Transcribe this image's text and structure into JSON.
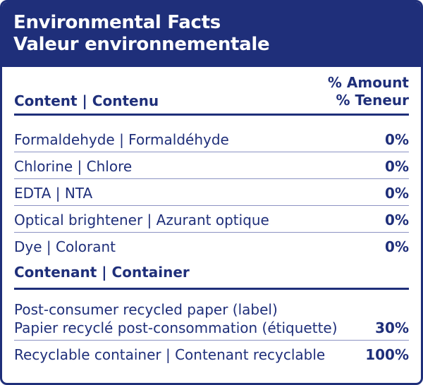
{
  "header": {
    "title_en": "Environmental Facts",
    "title_fr": "Valeur environnementale"
  },
  "content_section": {
    "label": "Content | Contenu",
    "amount_header_en": "% Amount",
    "amount_header_fr": "% Teneur",
    "rows": [
      {
        "label": "Formaldehyde | Formaldéhyde",
        "value": "0%"
      },
      {
        "label": "Chlorine | Chlore",
        "value": "0%"
      },
      {
        "label": "EDTA | NTA",
        "value": "0%"
      },
      {
        "label": "Optical brightener | Azurant optique",
        "value": "0%"
      },
      {
        "label": "Dye | Colorant",
        "value": "0%"
      }
    ]
  },
  "container_section": {
    "label": "Contenant | Container",
    "rows": [
      {
        "label_line1": "Post-consumer recycled paper (label)",
        "label_line2": "Papier recyclé post-consommation (étiquette)",
        "value": "30%"
      },
      {
        "label": "Recyclable container | Contenant recyclable",
        "value": "100%"
      }
    ]
  },
  "colors": {
    "primary": "#1f2f7a",
    "divider": "#8c93c3",
    "background": "#ffffff"
  }
}
